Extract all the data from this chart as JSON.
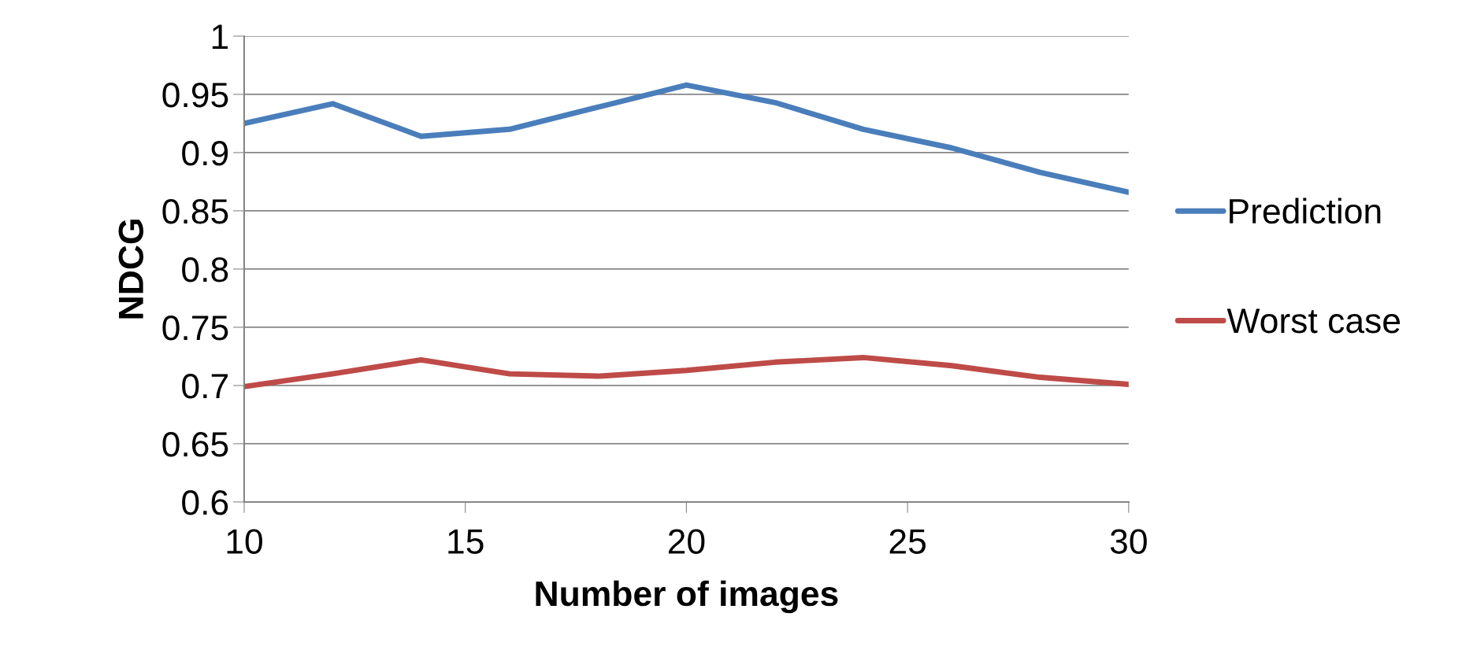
{
  "chart_data": {
    "type": "line",
    "xlabel": "Number of images",
    "ylabel": "NDCG",
    "x": [
      10,
      12,
      14,
      16,
      18,
      20,
      22,
      24,
      26,
      28,
      30
    ],
    "series": [
      {
        "name": "Prediction",
        "color": "#4a7ebb",
        "values": [
          0.925,
          0.942,
          0.914,
          0.92,
          0.939,
          0.958,
          0.943,
          0.92,
          0.904,
          0.883,
          0.866
        ]
      },
      {
        "name": "Worst case",
        "color": "#be4b48",
        "values": [
          0.699,
          0.71,
          0.722,
          0.71,
          0.708,
          0.713,
          0.72,
          0.724,
          0.717,
          0.707,
          0.701
        ]
      }
    ],
    "xlim": [
      10,
      30
    ],
    "xticks": [
      10,
      15,
      20,
      25,
      30
    ],
    "ylim": [
      0.6,
      1
    ],
    "yticks": [
      0.6,
      0.65,
      0.7,
      0.75,
      0.8,
      0.85,
      0.9,
      0.95,
      1
    ],
    "grid": "y",
    "legend": "right",
    "marker": "none",
    "line_style": "solid"
  }
}
